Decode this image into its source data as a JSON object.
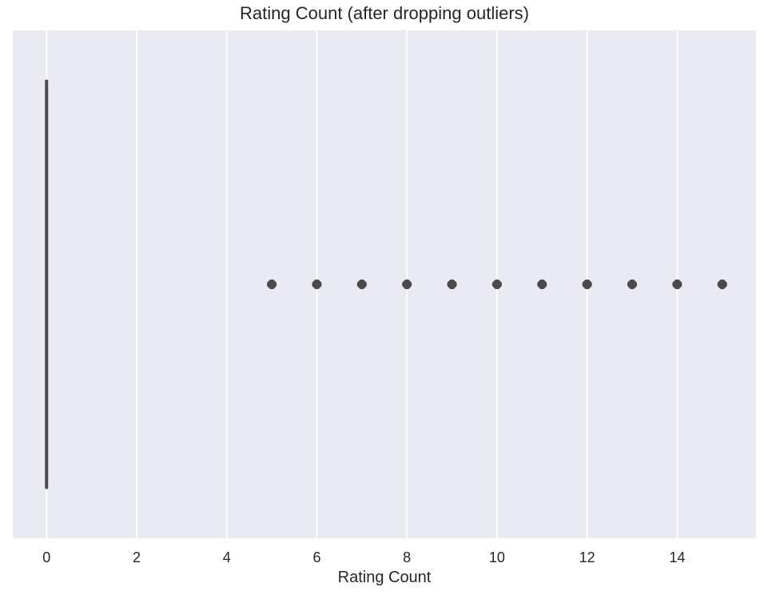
{
  "chart_data": {
    "type": "boxplot",
    "title": "Rating Count (after dropping outliers)",
    "xlabel": "Rating Count",
    "ylabel": "",
    "xlim": [
      -0.75,
      15.75
    ],
    "xticks": [
      0,
      2,
      4,
      6,
      8,
      10,
      12,
      14
    ],
    "grid": true,
    "orientation": "horizontal",
    "box": {
      "min": 0,
      "q1": 0,
      "median": 0,
      "q3": 0,
      "max": 0
    },
    "outliers": [
      5,
      6,
      7,
      8,
      9,
      10,
      11,
      12,
      13,
      14,
      15
    ],
    "colors": {
      "plot_background": "#eaeaf2",
      "grid": "#ffffff",
      "box": "#4a4a4a",
      "text": "#262626"
    }
  }
}
